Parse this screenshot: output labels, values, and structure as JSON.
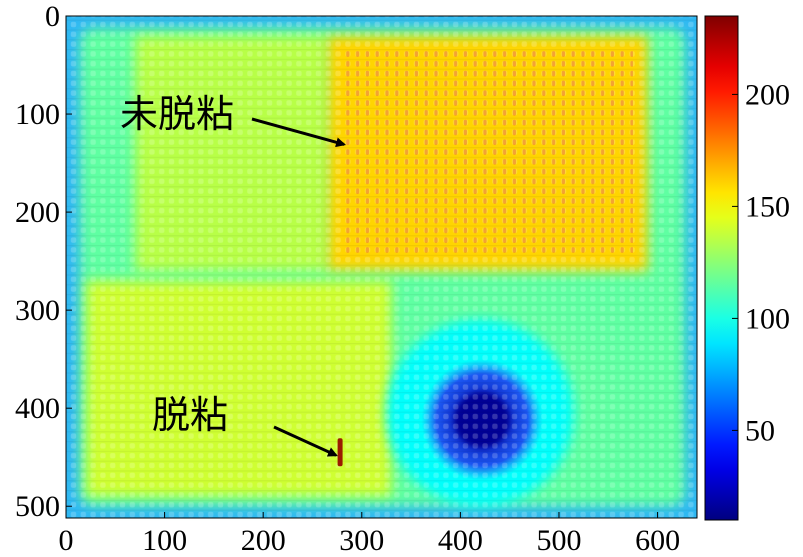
{
  "chart_data": {
    "type": "heatmap",
    "title": "",
    "xlabel": "",
    "ylabel": "",
    "xlim": [
      0,
      640
    ],
    "ylim": [
      512,
      0
    ],
    "x_ticks": [
      0,
      100,
      200,
      300,
      400,
      500,
      600
    ],
    "y_ticks": [
      0,
      100,
      200,
      300,
      400,
      500
    ],
    "colormap": "jet",
    "colorbar": {
      "range": [
        10,
        235
      ],
      "ticks": [
        50,
        100,
        150,
        200
      ],
      "colors": [
        "#00008f",
        "#0000ff",
        "#00ffff",
        "#ffff00",
        "#ff0000",
        "#800000"
      ]
    },
    "regions": [
      {
        "name": "background",
        "value": 115,
        "x": [
          0,
          640
        ],
        "y": [
          0,
          512
        ]
      },
      {
        "name": "upper-left-mid",
        "value": 135,
        "x": [
          70,
          265
        ],
        "y": [
          20,
          260
        ]
      },
      {
        "name": "upper-center",
        "value": 160,
        "x": [
          265,
          590
        ],
        "y": [
          20,
          260
        ]
      },
      {
        "name": "lower-left",
        "value": 140,
        "x": [
          20,
          330
        ],
        "y": [
          270,
          490
        ]
      },
      {
        "name": "halo",
        "value": 95,
        "center": [
          420,
          405
        ],
        "radius": 95
      },
      {
        "name": "defect-core",
        "value": 15,
        "center": [
          422,
          412
        ],
        "radius": 28
      }
    ],
    "annotations": [
      {
        "text": "未脱粘",
        "target": [
          280,
          130
        ]
      },
      {
        "text": "脱粘",
        "target": [
          278,
          445
        ]
      }
    ]
  }
}
